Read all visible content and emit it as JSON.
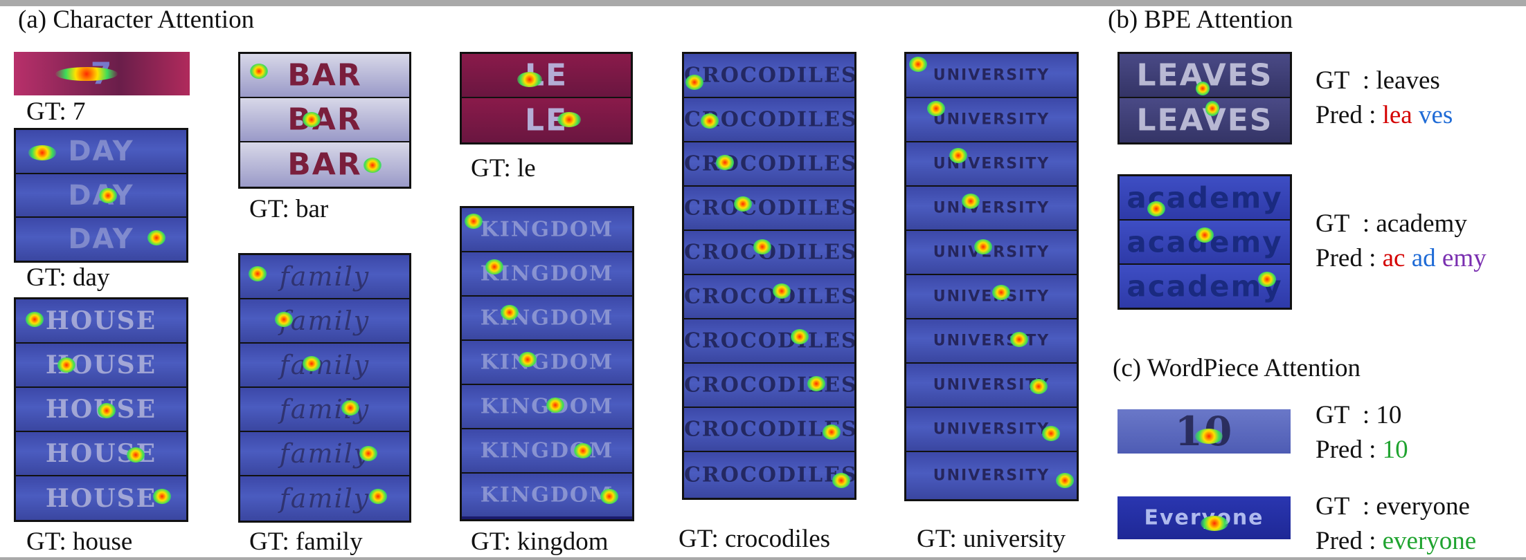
{
  "sections": {
    "a": "(a) Character Attention",
    "b": "(b) BPE Attention",
    "c": "(c) WordPiece Attention"
  },
  "char_captions": {
    "seven": "GT: 7",
    "day": "GT: day",
    "house": "GT: house",
    "bar": "GT: bar",
    "family": "GT: family",
    "le": "GT: le",
    "kingdom": "GT: kingdom",
    "crocodiles": "GT: crocodiles",
    "university": "GT: university"
  },
  "image_words": {
    "seven": "7",
    "day": "DAY",
    "house": "HOUSE",
    "bar": "BAR",
    "family": "family",
    "le": "LE",
    "kingdom": "KINGDOM",
    "crocodiles": "CROCODILES",
    "university": "UNIVERSITY",
    "leaves": "LEAVES",
    "academy": "academy",
    "ten": "10",
    "everyone": "Everyone"
  },
  "bpe": {
    "leaves": {
      "gt": "GT  : leaves",
      "pred_label": "Pred :",
      "tokens": [
        "lea",
        "ves"
      ]
    },
    "academy": {
      "gt": "GT  : academy",
      "pred_label": "Pred :",
      "tokens": [
        "ac",
        "ad",
        "emy"
      ]
    }
  },
  "wordpiece": {
    "ten": {
      "gt": "GT  : 10",
      "pred_label": "Pred :",
      "tokens": [
        "10"
      ]
    },
    "everyone": {
      "gt": "GT  : everyone",
      "pred_label": "Pred :",
      "tokens": [
        "everyone"
      ]
    }
  },
  "colors": {
    "token1": "#d40000",
    "token2": "#1f6bd6",
    "token3": "#7a2fb0",
    "single": "#1fa32f"
  }
}
